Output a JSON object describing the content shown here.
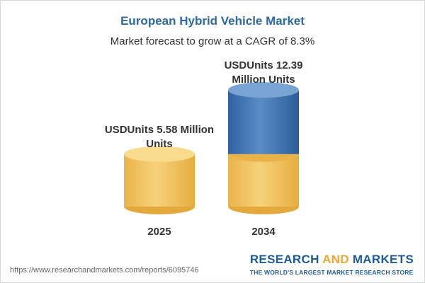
{
  "chart_data": {
    "type": "bar",
    "style": "cylinder",
    "title": "European Hybrid Vehicle Market",
    "subtitle": "Market forecast to grow at a CAGR of 8.3%",
    "categories": [
      "2025",
      "2034"
    ],
    "values": [
      5.58,
      12.39
    ],
    "value_labels": [
      [
        "USDUnits 5.58 Million",
        "Units"
      ],
      [
        "USDUnits 12.39",
        "Million Units"
      ]
    ],
    "colors": {
      "gold": "#f2c15c",
      "gold_top": "#f9db8e",
      "blue": "#3f73ad",
      "blue_top": "#78a4d4"
    }
  },
  "footer": {
    "url": "https://www.researchandmarkets.com/reports/6095746",
    "brand_research": "RESEARCH",
    "brand_and": "AND",
    "brand_markets": "MARKETS",
    "tagline": "THE WORLD'S LARGEST MARKET RESEARCH STORE"
  }
}
